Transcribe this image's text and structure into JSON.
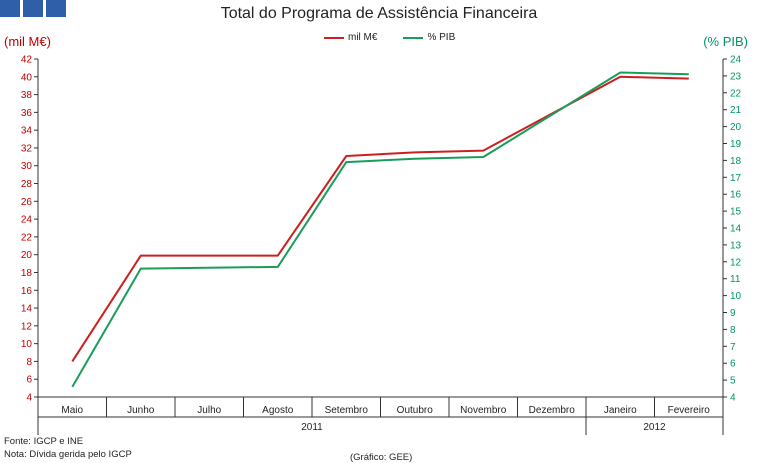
{
  "header": {
    "title": "Total do Programa de Assistência Financeira",
    "left_unit": "(mil M€)",
    "right_unit": "(% PIB)"
  },
  "footer": {
    "source": "Fonte: IGCP e INE",
    "note": "Nota: Dívida gerida pelo IGCP",
    "credit": "(Gráfico: GEE)"
  },
  "colors": {
    "left_series": "#cc1f1f",
    "right_series": "#1a9c5a",
    "logo": "#2f5fa8"
  },
  "chart_data": {
    "type": "line",
    "title": "Total do Programa de Assistência Financeira",
    "x": [
      "Maio",
      "Junho",
      "Julho",
      "Agosto",
      "Setembro",
      "Outubro",
      "Novembro",
      "Dezembro",
      "Janeiro",
      "Fevereiro"
    ],
    "year_groups": [
      {
        "label": "2011",
        "span": [
          0,
          7
        ]
      },
      {
        "label": "2012",
        "span": [
          8,
          9
        ]
      }
    ],
    "left_axis": {
      "label": "(mil M€)",
      "ylim": [
        4,
        42
      ],
      "step": 2
    },
    "right_axis": {
      "label": "(% PIB)",
      "ylim": [
        4,
        24
      ],
      "step": 1
    },
    "series": [
      {
        "name": "mil M€",
        "axis": "left",
        "color": "#cc1f1f",
        "values": [
          8.0,
          19.9,
          null,
          19.9,
          31.1,
          31.5,
          31.7,
          null,
          40.0,
          39.8
        ]
      },
      {
        "name": "% PIB",
        "axis": "right",
        "color": "#1a9c5a",
        "values": [
          4.6,
          11.6,
          null,
          11.7,
          17.9,
          18.1,
          18.2,
          null,
          23.2,
          23.1
        ]
      }
    ],
    "grid": false,
    "legend_position": "top-center"
  }
}
